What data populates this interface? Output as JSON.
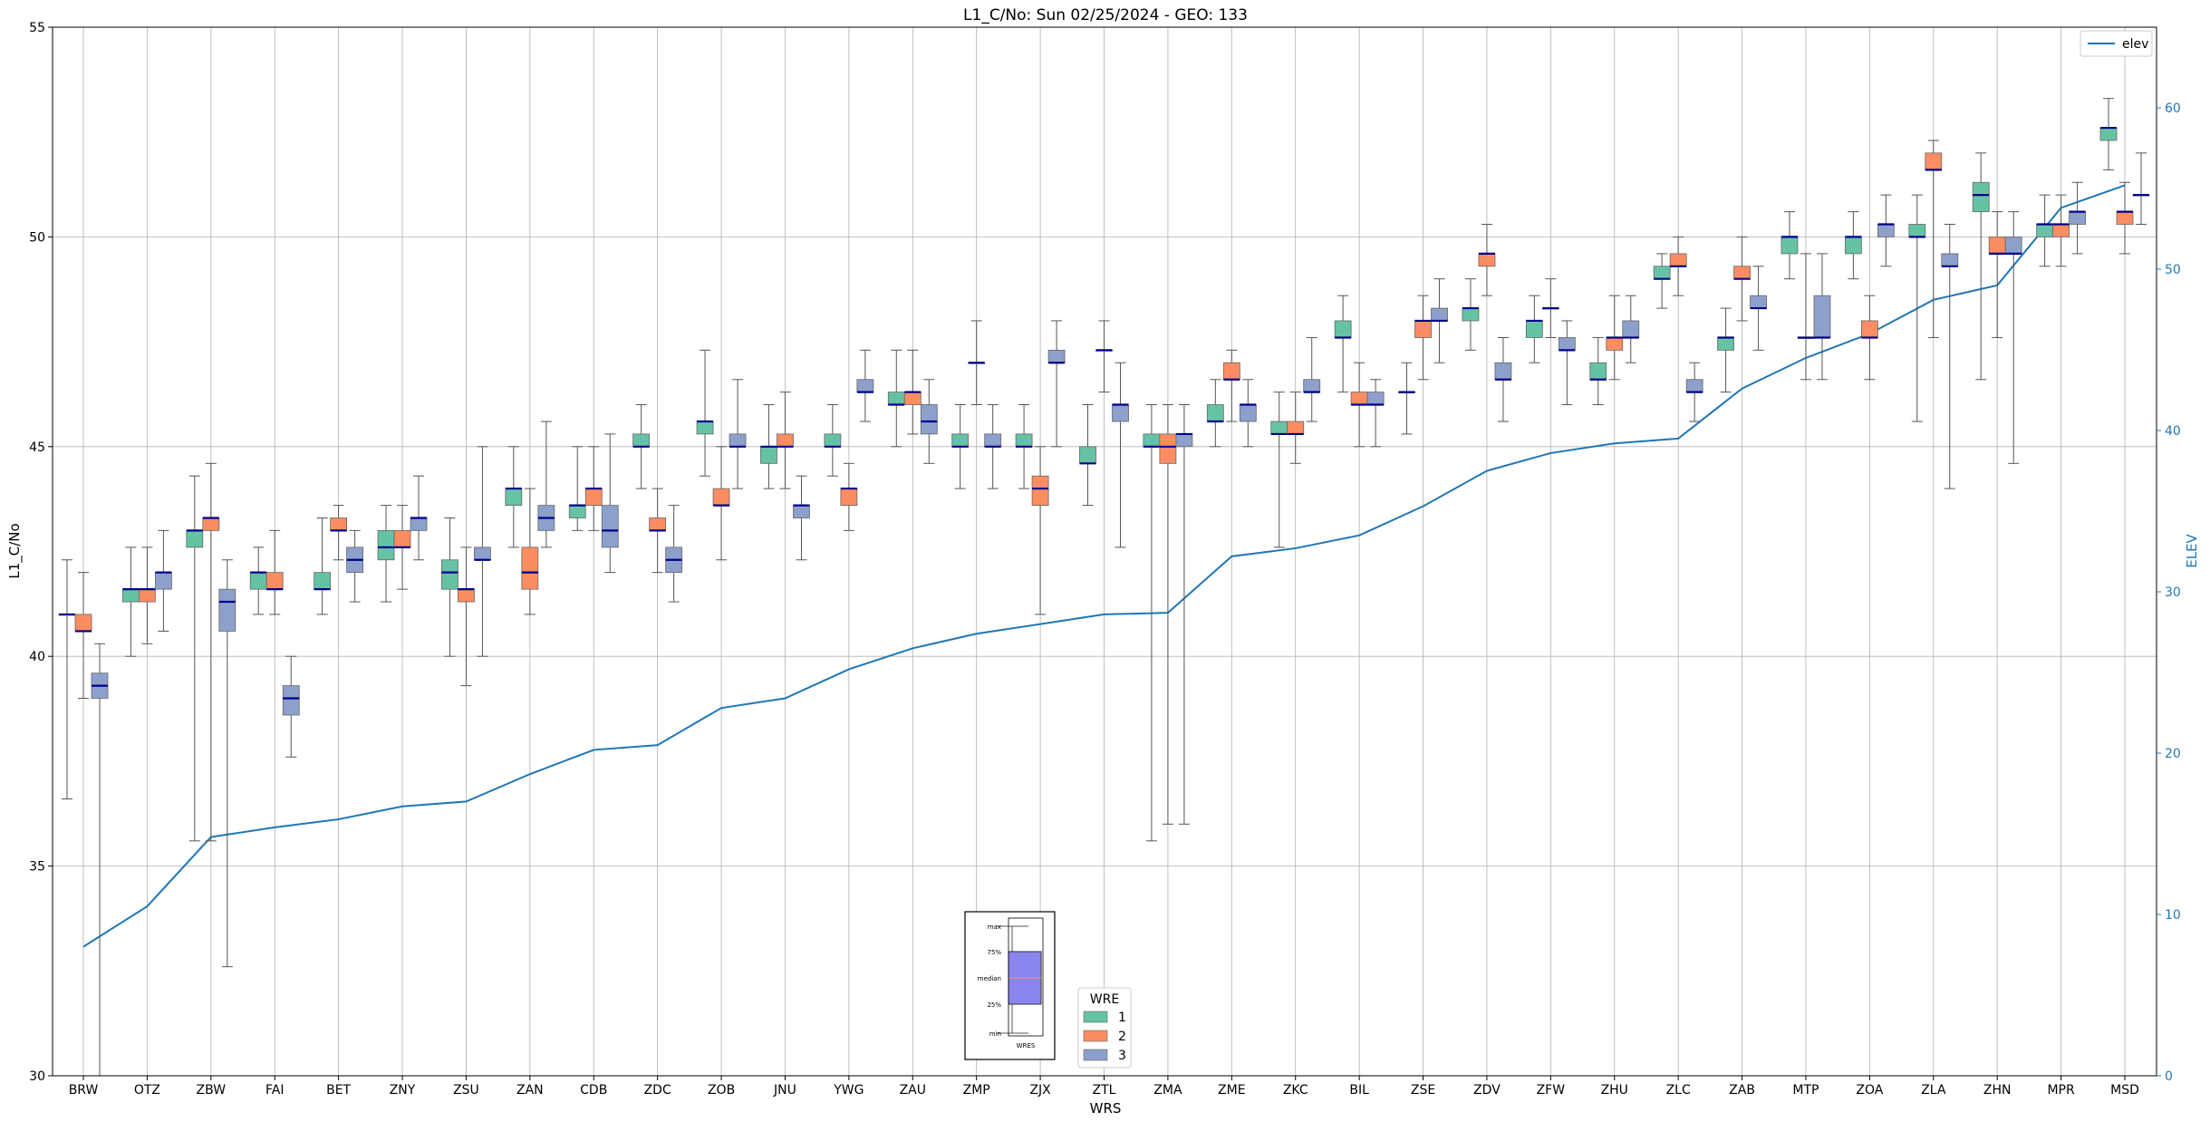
{
  "chart_data": {
    "type": "box",
    "title": "L1_C/No: Sun 02/25/2024 - GEO: 133",
    "xlabel": "WRS",
    "ylabel": "L1_C/No",
    "y2label": "ELEV",
    "ylim": [
      30,
      55
    ],
    "y2lim": [
      0,
      65
    ],
    "yticks": [
      "30",
      "35",
      "40",
      "45",
      "50",
      "55"
    ],
    "y2ticks": [
      "0",
      "10",
      "20",
      "30",
      "40",
      "50",
      "60"
    ],
    "grid": true,
    "colors": {
      "1": "#66c2a5",
      "2": "#fc8d62",
      "3": "#8da0cb",
      "elev": "#1f77b4",
      "median": "#00008b"
    },
    "categories": [
      "BRW",
      "OTZ",
      "ZBW",
      "FAI",
      "BET",
      "ZNY",
      "ZSU",
      "ZAN",
      "CDB",
      "ZDC",
      "ZOB",
      "JNU",
      "YWG",
      "ZAU",
      "ZMP",
      "ZJX",
      "ZTL",
      "ZMA",
      "ZME",
      "ZKC",
      "BIL",
      "ZSE",
      "ZDV",
      "ZFW",
      "ZHU",
      "ZLC",
      "ZAB",
      "MTP",
      "ZOA",
      "ZLA",
      "ZHN",
      "MPR",
      "MSD"
    ],
    "elev_legend": "elev",
    "elev": [
      8.0,
      10.5,
      14.8,
      15.4,
      15.9,
      16.7,
      17.0,
      18.7,
      20.2,
      20.5,
      22.8,
      23.4,
      25.2,
      26.5,
      27.4,
      28.0,
      28.6,
      28.7,
      32.2,
      32.7,
      33.5,
      35.3,
      37.5,
      38.6,
      39.2,
      39.5,
      42.6,
      44.5,
      46.0,
      48.1,
      49.0,
      53.8,
      55.2
    ],
    "boxes": [
      {
        "cat": "BRW",
        "wre": "1",
        "min": 36.6,
        "q1": 41.0,
        "median": 41.0,
        "q3": 41.0,
        "max": 42.3
      },
      {
        "cat": "BRW",
        "wre": "2",
        "min": 39.0,
        "q1": 40.6,
        "median": 40.6,
        "q3": 41.0,
        "max": 42.0
      },
      {
        "cat": "BRW",
        "wre": "3",
        "min": 30.0,
        "q1": 39.0,
        "median": 39.3,
        "q3": 39.6,
        "max": 40.3
      },
      {
        "cat": "OTZ",
        "wre": "1",
        "min": 40.0,
        "q1": 41.3,
        "median": 41.6,
        "q3": 41.6,
        "max": 42.6
      },
      {
        "cat": "OTZ",
        "wre": "2",
        "min": 40.3,
        "q1": 41.3,
        "median": 41.6,
        "q3": 41.6,
        "max": 42.6
      },
      {
        "cat": "OTZ",
        "wre": "3",
        "min": 40.6,
        "q1": 41.6,
        "median": 42.0,
        "q3": 42.0,
        "max": 43.0
      },
      {
        "cat": "ZBW",
        "wre": "1",
        "min": 35.6,
        "q1": 42.6,
        "median": 43.0,
        "q3": 43.0,
        "max": 44.3
      },
      {
        "cat": "ZBW",
        "wre": "2",
        "min": 35.6,
        "q1": 43.0,
        "median": 43.3,
        "q3": 43.3,
        "max": 44.6
      },
      {
        "cat": "ZBW",
        "wre": "3",
        "min": 32.6,
        "q1": 40.6,
        "median": 41.3,
        "q3": 41.6,
        "max": 42.3
      },
      {
        "cat": "FAI",
        "wre": "1",
        "min": 41.0,
        "q1": 41.6,
        "median": 42.0,
        "q3": 42.0,
        "max": 42.6
      },
      {
        "cat": "FAI",
        "wre": "2",
        "min": 41.0,
        "q1": 41.6,
        "median": 41.6,
        "q3": 42.0,
        "max": 43.0
      },
      {
        "cat": "FAI",
        "wre": "3",
        "min": 37.6,
        "q1": 38.6,
        "median": 39.0,
        "q3": 39.3,
        "max": 40.0
      },
      {
        "cat": "BET",
        "wre": "1",
        "min": 41.0,
        "q1": 41.6,
        "median": 41.6,
        "q3": 42.0,
        "max": 43.3
      },
      {
        "cat": "BET",
        "wre": "2",
        "min": 42.3,
        "q1": 43.0,
        "median": 43.0,
        "q3": 43.3,
        "max": 43.6
      },
      {
        "cat": "BET",
        "wre": "3",
        "min": 41.3,
        "q1": 42.0,
        "median": 42.3,
        "q3": 42.6,
        "max": 43.0
      },
      {
        "cat": "ZNY",
        "wre": "1",
        "min": 41.3,
        "q1": 42.3,
        "median": 42.6,
        "q3": 43.0,
        "max": 43.6
      },
      {
        "cat": "ZNY",
        "wre": "2",
        "min": 41.6,
        "q1": 42.6,
        "median": 42.6,
        "q3": 43.0,
        "max": 43.6
      },
      {
        "cat": "ZNY",
        "wre": "3",
        "min": 42.3,
        "q1": 43.0,
        "median": 43.3,
        "q3": 43.3,
        "max": 44.3
      },
      {
        "cat": "ZSU",
        "wre": "1",
        "min": 40.0,
        "q1": 41.6,
        "median": 42.0,
        "q3": 42.3,
        "max": 43.3
      },
      {
        "cat": "ZSU",
        "wre": "2",
        "min": 39.3,
        "q1": 41.3,
        "median": 41.6,
        "q3": 41.6,
        "max": 42.6
      },
      {
        "cat": "ZSU",
        "wre": "3",
        "min": 40.0,
        "q1": 42.3,
        "median": 42.3,
        "q3": 42.6,
        "max": 45.0
      },
      {
        "cat": "ZAN",
        "wre": "1",
        "min": 42.6,
        "q1": 43.6,
        "median": 44.0,
        "q3": 44.0,
        "max": 45.0
      },
      {
        "cat": "ZAN",
        "wre": "2",
        "min": 41.0,
        "q1": 41.6,
        "median": 42.0,
        "q3": 42.6,
        "max": 44.0
      },
      {
        "cat": "ZAN",
        "wre": "3",
        "min": 42.6,
        "q1": 43.0,
        "median": 43.3,
        "q3": 43.6,
        "max": 45.6
      },
      {
        "cat": "CDB",
        "wre": "1",
        "min": 43.0,
        "q1": 43.3,
        "median": 43.6,
        "q3": 43.6,
        "max": 45.0
      },
      {
        "cat": "CDB",
        "wre": "2",
        "min": 43.0,
        "q1": 43.6,
        "median": 44.0,
        "q3": 44.0,
        "max": 45.0
      },
      {
        "cat": "CDB",
        "wre": "3",
        "min": 42.0,
        "q1": 42.6,
        "median": 43.0,
        "q3": 43.6,
        "max": 45.3
      },
      {
        "cat": "ZDC",
        "wre": "1",
        "min": 44.0,
        "q1": 45.0,
        "median": 45.0,
        "q3": 45.3,
        "max": 46.0
      },
      {
        "cat": "ZDC",
        "wre": "2",
        "min": 42.0,
        "q1": 43.0,
        "median": 43.0,
        "q3": 43.3,
        "max": 44.0
      },
      {
        "cat": "ZDC",
        "wre": "3",
        "min": 41.3,
        "q1": 42.0,
        "median": 42.3,
        "q3": 42.6,
        "max": 43.6
      },
      {
        "cat": "ZOB",
        "wre": "1",
        "min": 44.3,
        "q1": 45.3,
        "median": 45.6,
        "q3": 45.6,
        "max": 47.3
      },
      {
        "cat": "ZOB",
        "wre": "2",
        "min": 42.3,
        "q1": 43.6,
        "median": 43.6,
        "q3": 44.0,
        "max": 45.0
      },
      {
        "cat": "ZOB",
        "wre": "3",
        "min": 44.0,
        "q1": 45.0,
        "median": 45.0,
        "q3": 45.3,
        "max": 46.6
      },
      {
        "cat": "JNU",
        "wre": "1",
        "min": 44.0,
        "q1": 44.6,
        "median": 45.0,
        "q3": 45.0,
        "max": 46.0
      },
      {
        "cat": "JNU",
        "wre": "2",
        "min": 44.0,
        "q1": 45.0,
        "median": 45.0,
        "q3": 45.3,
        "max": 46.3
      },
      {
        "cat": "JNU",
        "wre": "3",
        "min": 42.3,
        "q1": 43.3,
        "median": 43.6,
        "q3": 43.6,
        "max": 44.3
      },
      {
        "cat": "YWG",
        "wre": "1",
        "min": 44.3,
        "q1": 45.0,
        "median": 45.0,
        "q3": 45.3,
        "max": 46.0
      },
      {
        "cat": "YWG",
        "wre": "2",
        "min": 43.0,
        "q1": 43.6,
        "median": 44.0,
        "q3": 44.0,
        "max": 44.6
      },
      {
        "cat": "YWG",
        "wre": "3",
        "min": 45.6,
        "q1": 46.3,
        "median": 46.3,
        "q3": 46.6,
        "max": 47.3
      },
      {
        "cat": "ZAU",
        "wre": "1",
        "min": 45.0,
        "q1": 46.0,
        "median": 46.0,
        "q3": 46.3,
        "max": 47.3
      },
      {
        "cat": "ZAU",
        "wre": "2",
        "min": 45.3,
        "q1": 46.0,
        "median": 46.3,
        "q3": 46.3,
        "max": 47.3
      },
      {
        "cat": "ZAU",
        "wre": "3",
        "min": 44.6,
        "q1": 45.3,
        "median": 45.6,
        "q3": 46.0,
        "max": 46.6
      },
      {
        "cat": "ZMP",
        "wre": "1",
        "min": 44.0,
        "q1": 45.0,
        "median": 45.0,
        "q3": 45.3,
        "max": 46.0
      },
      {
        "cat": "ZMP",
        "wre": "2",
        "min": 46.0,
        "q1": 47.0,
        "median": 47.0,
        "q3": 47.0,
        "max": 48.0
      },
      {
        "cat": "ZMP",
        "wre": "3",
        "min": 44.0,
        "q1": 45.0,
        "median": 45.0,
        "q3": 45.3,
        "max": 46.0
      },
      {
        "cat": "ZJX",
        "wre": "1",
        "min": 44.0,
        "q1": 45.0,
        "median": 45.0,
        "q3": 45.3,
        "max": 46.0
      },
      {
        "cat": "ZJX",
        "wre": "2",
        "min": 41.0,
        "q1": 43.6,
        "median": 44.0,
        "q3": 44.3,
        "max": 45.0
      },
      {
        "cat": "ZJX",
        "wre": "3",
        "min": 45.0,
        "q1": 47.0,
        "median": 47.0,
        "q3": 47.3,
        "max": 48.0
      },
      {
        "cat": "ZTL",
        "wre": "1",
        "min": 43.6,
        "q1": 44.6,
        "median": 44.6,
        "q3": 45.0,
        "max": 46.0
      },
      {
        "cat": "ZTL",
        "wre": "2",
        "min": 46.3,
        "q1": 47.3,
        "median": 47.3,
        "q3": 47.3,
        "max": 48.0
      },
      {
        "cat": "ZTL",
        "wre": "3",
        "min": 42.6,
        "q1": 45.6,
        "median": 46.0,
        "q3": 46.0,
        "max": 47.0
      },
      {
        "cat": "ZMA",
        "wre": "1",
        "min": 35.6,
        "q1": 45.0,
        "median": 45.0,
        "q3": 45.3,
        "max": 46.0
      },
      {
        "cat": "ZMA",
        "wre": "2",
        "min": 36.0,
        "q1": 44.6,
        "median": 45.0,
        "q3": 45.3,
        "max": 46.0
      },
      {
        "cat": "ZMA",
        "wre": "3",
        "min": 36.0,
        "q1": 45.0,
        "median": 45.3,
        "q3": 45.3,
        "max": 46.0
      },
      {
        "cat": "ZME",
        "wre": "1",
        "min": 45.0,
        "q1": 45.6,
        "median": 45.6,
        "q3": 46.0,
        "max": 46.6
      },
      {
        "cat": "ZME",
        "wre": "2",
        "min": 45.6,
        "q1": 46.6,
        "median": 46.6,
        "q3": 47.0,
        "max": 47.3
      },
      {
        "cat": "ZME",
        "wre": "3",
        "min": 45.0,
        "q1": 45.6,
        "median": 46.0,
        "q3": 46.0,
        "max": 46.6
      },
      {
        "cat": "ZKC",
        "wre": "1",
        "min": 42.6,
        "q1": 45.3,
        "median": 45.3,
        "q3": 45.6,
        "max": 46.3
      },
      {
        "cat": "ZKC",
        "wre": "2",
        "min": 44.6,
        "q1": 45.3,
        "median": 45.3,
        "q3": 45.6,
        "max": 46.3
      },
      {
        "cat": "ZKC",
        "wre": "3",
        "min": 45.6,
        "q1": 46.3,
        "median": 46.3,
        "q3": 46.6,
        "max": 47.6
      },
      {
        "cat": "BIL",
        "wre": "1",
        "min": 46.3,
        "q1": 47.6,
        "median": 47.6,
        "q3": 48.0,
        "max": 48.6
      },
      {
        "cat": "BIL",
        "wre": "2",
        "min": 45.0,
        "q1": 46.0,
        "median": 46.0,
        "q3": 46.3,
        "max": 47.0
      },
      {
        "cat": "BIL",
        "wre": "3",
        "min": 45.0,
        "q1": 46.0,
        "median": 46.0,
        "q3": 46.3,
        "max": 46.6
      },
      {
        "cat": "ZSE",
        "wre": "1",
        "min": 45.3,
        "q1": 46.3,
        "median": 46.3,
        "q3": 46.3,
        "max": 47.0
      },
      {
        "cat": "ZSE",
        "wre": "2",
        "min": 46.6,
        "q1": 47.6,
        "median": 48.0,
        "q3": 48.0,
        "max": 48.6
      },
      {
        "cat": "ZSE",
        "wre": "3",
        "min": 47.0,
        "q1": 48.0,
        "median": 48.0,
        "q3": 48.3,
        "max": 49.0
      },
      {
        "cat": "ZDV",
        "wre": "1",
        "min": 47.3,
        "q1": 48.0,
        "median": 48.3,
        "q3": 48.3,
        "max": 49.0
      },
      {
        "cat": "ZDV",
        "wre": "2",
        "min": 48.6,
        "q1": 49.3,
        "median": 49.6,
        "q3": 49.6,
        "max": 50.3
      },
      {
        "cat": "ZDV",
        "wre": "3",
        "min": 45.6,
        "q1": 46.6,
        "median": 46.6,
        "q3": 47.0,
        "max": 47.6
      },
      {
        "cat": "ZFW",
        "wre": "1",
        "min": 47.0,
        "q1": 47.6,
        "median": 48.0,
        "q3": 48.0,
        "max": 48.6
      },
      {
        "cat": "ZFW",
        "wre": "2",
        "min": 47.6,
        "q1": 48.3,
        "median": 48.3,
        "q3": 48.3,
        "max": 49.0
      },
      {
        "cat": "ZFW",
        "wre": "3",
        "min": 46.0,
        "q1": 47.3,
        "median": 47.3,
        "q3": 47.6,
        "max": 48.0
      },
      {
        "cat": "ZHU",
        "wre": "1",
        "min": 46.0,
        "q1": 46.6,
        "median": 46.6,
        "q3": 47.0,
        "max": 47.6
      },
      {
        "cat": "ZHU",
        "wre": "2",
        "min": 46.6,
        "q1": 47.3,
        "median": 47.6,
        "q3": 47.6,
        "max": 48.6
      },
      {
        "cat": "ZHU",
        "wre": "3",
        "min": 47.0,
        "q1": 47.6,
        "median": 47.6,
        "q3": 48.0,
        "max": 48.6
      },
      {
        "cat": "ZLC",
        "wre": "1",
        "min": 48.3,
        "q1": 49.0,
        "median": 49.0,
        "q3": 49.3,
        "max": 49.6
      },
      {
        "cat": "ZLC",
        "wre": "2",
        "min": 48.6,
        "q1": 49.3,
        "median": 49.3,
        "q3": 49.6,
        "max": 50.0
      },
      {
        "cat": "ZLC",
        "wre": "3",
        "min": 45.6,
        "q1": 46.3,
        "median": 46.3,
        "q3": 46.6,
        "max": 47.0
      },
      {
        "cat": "ZAB",
        "wre": "1",
        "min": 46.3,
        "q1": 47.3,
        "median": 47.6,
        "q3": 47.6,
        "max": 48.3
      },
      {
        "cat": "ZAB",
        "wre": "2",
        "min": 48.0,
        "q1": 49.0,
        "median": 49.0,
        "q3": 49.3,
        "max": 50.0
      },
      {
        "cat": "ZAB",
        "wre": "3",
        "min": 47.3,
        "q1": 48.3,
        "median": 48.3,
        "q3": 48.6,
        "max": 49.3
      },
      {
        "cat": "MTP",
        "wre": "1",
        "min": 49.0,
        "q1": 49.6,
        "median": 50.0,
        "q3": 50.0,
        "max": 50.6
      },
      {
        "cat": "MTP",
        "wre": "2",
        "min": 46.6,
        "q1": 47.6,
        "median": 47.6,
        "q3": 47.6,
        "max": 49.6
      },
      {
        "cat": "MTP",
        "wre": "3",
        "min": 46.6,
        "q1": 47.6,
        "median": 47.6,
        "q3": 48.6,
        "max": 49.6
      },
      {
        "cat": "ZOA",
        "wre": "1",
        "min": 49.0,
        "q1": 49.6,
        "median": 50.0,
        "q3": 50.0,
        "max": 50.6
      },
      {
        "cat": "ZOA",
        "wre": "2",
        "min": 46.6,
        "q1": 47.6,
        "median": 47.6,
        "q3": 48.0,
        "max": 48.6
      },
      {
        "cat": "ZOA",
        "wre": "3",
        "min": 49.3,
        "q1": 50.0,
        "median": 50.3,
        "q3": 50.3,
        "max": 51.0
      },
      {
        "cat": "ZLA",
        "wre": "1",
        "min": 45.6,
        "q1": 50.0,
        "median": 50.0,
        "q3": 50.3,
        "max": 51.0
      },
      {
        "cat": "ZLA",
        "wre": "2",
        "min": 47.6,
        "q1": 51.6,
        "median": 51.6,
        "q3": 52.0,
        "max": 52.3
      },
      {
        "cat": "ZLA",
        "wre": "3",
        "min": 44.0,
        "q1": 49.3,
        "median": 49.3,
        "q3": 49.6,
        "max": 50.3
      },
      {
        "cat": "ZHN",
        "wre": "1",
        "min": 46.6,
        "q1": 50.6,
        "median": 51.0,
        "q3": 51.3,
        "max": 52.0
      },
      {
        "cat": "ZHN",
        "wre": "2",
        "min": 47.6,
        "q1": 49.6,
        "median": 49.6,
        "q3": 50.0,
        "max": 50.6
      },
      {
        "cat": "ZHN",
        "wre": "3",
        "min": 44.6,
        "q1": 49.6,
        "median": 49.6,
        "q3": 50.0,
        "max": 50.6
      },
      {
        "cat": "MPR",
        "wre": "1",
        "min": 49.3,
        "q1": 50.0,
        "median": 50.3,
        "q3": 50.3,
        "max": 51.0
      },
      {
        "cat": "MPR",
        "wre": "2",
        "min": 49.3,
        "q1": 50.0,
        "median": 50.3,
        "q3": 50.3,
        "max": 51.0
      },
      {
        "cat": "MPR",
        "wre": "3",
        "min": 49.6,
        "q1": 50.3,
        "median": 50.6,
        "q3": 50.6,
        "max": 51.3
      },
      {
        "cat": "MSD",
        "wre": "1",
        "min": 51.6,
        "q1": 52.3,
        "median": 52.6,
        "q3": 52.6,
        "max": 53.3
      },
      {
        "cat": "MSD",
        "wre": "2",
        "min": 49.6,
        "q1": 50.3,
        "median": 50.6,
        "q3": 50.6,
        "max": 51.3
      },
      {
        "cat": "MSD",
        "wre": "3",
        "min": 50.3,
        "q1": 51.0,
        "median": 51.0,
        "q3": 51.0,
        "max": 52.0
      }
    ],
    "legend_wre": {
      "title": "WRE",
      "entries": [
        "1",
        "2",
        "3"
      ]
    },
    "key_box": {
      "labels": [
        "max",
        "75%",
        "median",
        "25%",
        "min"
      ],
      "xlabel": "WRES"
    }
  }
}
